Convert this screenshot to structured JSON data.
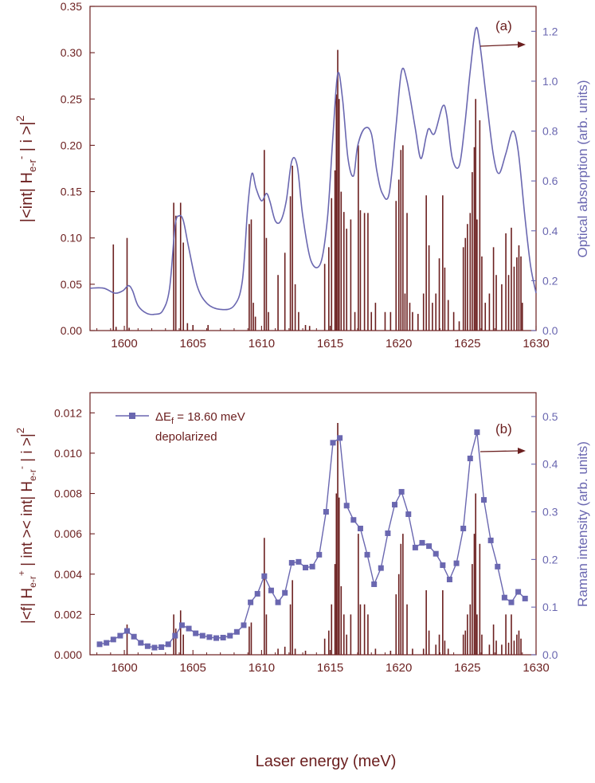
{
  "colors": {
    "dark": "#6b1f1f",
    "blue": "#6a67b0"
  },
  "xlabel": "Laser energy (meV)",
  "chart_data": [
    {
      "panel": "(a)",
      "type": "bar+line",
      "xlim": [
        1597.5,
        1630
      ],
      "x_ticks": [
        1600,
        1605,
        1610,
        1615,
        1620,
        1625,
        1630
      ],
      "ylabel_left": "|<int| H_e-r^- | i >|^2",
      "ylabel_right": "Optical absorption (arb. units)",
      "ylim_left": [
        0,
        0.35
      ],
      "yticks_left": [
        "0.00",
        "0.05",
        "0.10",
        "0.15",
        "0.20",
        "0.25",
        "0.30",
        "0.35"
      ],
      "ylim_right": [
        0,
        1.3
      ],
      "yticks_right": [
        "0.0",
        "0.2",
        "0.4",
        "0.6",
        "0.8",
        "1.0",
        "1.2"
      ],
      "arrow": "right",
      "bars": [
        [
          1599.2,
          0.093
        ],
        [
          1599.4,
          0.004
        ],
        [
          1600.2,
          0.1
        ],
        [
          1600.35,
          0.003
        ],
        [
          1603.6,
          0.138
        ],
        [
          1603.75,
          0.124
        ],
        [
          1604.1,
          0.138
        ],
        [
          1604.3,
          0.095
        ],
        [
          1604.6,
          0.008
        ],
        [
          1605,
          0.006
        ],
        [
          1606.1,
          0.006
        ],
        [
          1609.1,
          0.115
        ],
        [
          1609.25,
          0.12
        ],
        [
          1609.4,
          0.03
        ],
        [
          1609.55,
          0.015
        ],
        [
          1610.2,
          0.195
        ],
        [
          1610.35,
          0.1
        ],
        [
          1610.5,
          0.02
        ],
        [
          1611.2,
          0.06
        ],
        [
          1611.7,
          0.084
        ],
        [
          1612.1,
          0.145
        ],
        [
          1612.25,
          0.178
        ],
        [
          1612.45,
          0.05
        ],
        [
          1612.7,
          0.02
        ],
        [
          1613.2,
          0.006
        ],
        [
          1613.5,
          0.005
        ],
        [
          1614.6,
          0.072
        ],
        [
          1614.9,
          0.09
        ],
        [
          1615.1,
          0.143
        ],
        [
          1615.35,
          0.173
        ],
        [
          1615.45,
          0.255
        ],
        [
          1615.55,
          0.303
        ],
        [
          1615.65,
          0.25
        ],
        [
          1615.8,
          0.15
        ],
        [
          1616.0,
          0.128
        ],
        [
          1616.2,
          0.11
        ],
        [
          1616.5,
          0.12
        ],
        [
          1616.8,
          0.02
        ],
        [
          1617.05,
          0.2
        ],
        [
          1617.2,
          0.13
        ],
        [
          1617.5,
          0.127
        ],
        [
          1617.75,
          0.127
        ],
        [
          1618.0,
          0.02
        ],
        [
          1618.3,
          0.03
        ],
        [
          1619.0,
          0.02
        ],
        [
          1619.4,
          0.02
        ],
        [
          1619.8,
          0.14
        ],
        [
          1620.0,
          0.163
        ],
        [
          1620.15,
          0.195
        ],
        [
          1620.3,
          0.2
        ],
        [
          1620.45,
          0.04
        ],
        [
          1620.6,
          0.127
        ],
        [
          1620.8,
          0.03
        ],
        [
          1621.0,
          0.02
        ],
        [
          1621.4,
          0.018
        ],
        [
          1621.8,
          0.04
        ],
        [
          1622.0,
          0.146
        ],
        [
          1622.2,
          0.092
        ],
        [
          1622.45,
          0.03
        ],
        [
          1622.7,
          0.04
        ],
        [
          1622.95,
          0.078
        ],
        [
          1623.2,
          0.146
        ],
        [
          1623.35,
          0.068
        ],
        [
          1623.6,
          0.033
        ],
        [
          1624.0,
          0.02
        ],
        [
          1624.4,
          0.01
        ],
        [
          1624.7,
          0.09
        ],
        [
          1624.85,
          0.1
        ],
        [
          1625.0,
          0.115
        ],
        [
          1625.2,
          0.127
        ],
        [
          1625.35,
          0.171
        ],
        [
          1625.5,
          0.198
        ],
        [
          1625.6,
          0.25
        ],
        [
          1625.7,
          0.12
        ],
        [
          1625.9,
          0.227
        ],
        [
          1626.05,
          0.08
        ],
        [
          1626.3,
          0.03
        ],
        [
          1626.6,
          0.04
        ],
        [
          1626.9,
          0.09
        ],
        [
          1627.1,
          0.06
        ],
        [
          1627.5,
          0.05
        ],
        [
          1627.8,
          0.105
        ],
        [
          1628.0,
          0.06
        ],
        [
          1628.2,
          0.111
        ],
        [
          1628.4,
          0.069
        ],
        [
          1628.6,
          0.079
        ],
        [
          1628.75,
          0.092
        ],
        [
          1628.9,
          0.08
        ],
        [
          1629.0,
          0.03
        ]
      ],
      "curve": [
        [
          1597.5,
          0.17
        ],
        [
          1598.5,
          0.17
        ],
        [
          1599.3,
          0.15
        ],
        [
          1599.9,
          0.16
        ],
        [
          1600.3,
          0.18
        ],
        [
          1600.6,
          0.16
        ],
        [
          1601.0,
          0.1
        ],
        [
          1601.6,
          0.07
        ],
        [
          1602.2,
          0.065
        ],
        [
          1602.8,
          0.08
        ],
        [
          1603.3,
          0.17
        ],
        [
          1603.7,
          0.42
        ],
        [
          1604.0,
          0.46
        ],
        [
          1604.3,
          0.44
        ],
        [
          1604.7,
          0.33
        ],
        [
          1605.3,
          0.18
        ],
        [
          1606.0,
          0.11
        ],
        [
          1607.0,
          0.085
        ],
        [
          1608.0,
          0.1
        ],
        [
          1608.6,
          0.2
        ],
        [
          1609.0,
          0.5
        ],
        [
          1609.3,
          0.63
        ],
        [
          1609.6,
          0.57
        ],
        [
          1610.0,
          0.52
        ],
        [
          1610.35,
          0.55
        ],
        [
          1610.6,
          0.52
        ],
        [
          1611.0,
          0.44
        ],
        [
          1611.4,
          0.44
        ],
        [
          1611.8,
          0.52
        ],
        [
          1612.2,
          0.68
        ],
        [
          1612.6,
          0.66
        ],
        [
          1613.0,
          0.46
        ],
        [
          1613.6,
          0.28
        ],
        [
          1614.3,
          0.27
        ],
        [
          1614.8,
          0.45
        ],
        [
          1615.2,
          0.78
        ],
        [
          1615.55,
          1.03
        ],
        [
          1615.9,
          0.93
        ],
        [
          1616.3,
          0.69
        ],
        [
          1616.7,
          0.62
        ],
        [
          1617.0,
          0.74
        ],
        [
          1617.5,
          0.81
        ],
        [
          1618.0,
          0.79
        ],
        [
          1618.4,
          0.64
        ],
        [
          1618.8,
          0.55
        ],
        [
          1619.3,
          0.55
        ],
        [
          1619.8,
          0.82
        ],
        [
          1620.2,
          1.04
        ],
        [
          1620.6,
          1.0
        ],
        [
          1621.2,
          0.81
        ],
        [
          1621.6,
          0.69
        ],
        [
          1622.0,
          0.78
        ],
        [
          1622.2,
          0.81
        ],
        [
          1622.6,
          0.79
        ],
        [
          1623.2,
          0.9
        ],
        [
          1623.5,
          0.86
        ],
        [
          1623.9,
          0.69
        ],
        [
          1624.4,
          0.66
        ],
        [
          1624.8,
          0.82
        ],
        [
          1625.2,
          1.04
        ],
        [
          1625.6,
          1.21
        ],
        [
          1625.9,
          1.15
        ],
        [
          1626.4,
          0.92
        ],
        [
          1626.9,
          0.7
        ],
        [
          1627.3,
          0.63
        ],
        [
          1627.8,
          0.71
        ],
        [
          1628.3,
          0.8
        ],
        [
          1628.7,
          0.72
        ],
        [
          1629.2,
          0.45
        ],
        [
          1629.6,
          0.26
        ],
        [
          1630,
          0.15
        ]
      ]
    },
    {
      "panel": "(b)",
      "type": "bar+line",
      "xlim": [
        1597.5,
        1630
      ],
      "x_ticks": [
        1600,
        1605,
        1610,
        1615,
        1620,
        1625,
        1630
      ],
      "ylabel_left": "|<f| H_e-r^+ | int >< int| H_e-r^- | i >|^2",
      "ylabel_right": "Raman intensity (arb. units)",
      "ylim_left": [
        0,
        0.013
      ],
      "yticks_left": [
        "0.000",
        "0.002",
        "0.004",
        "0.006",
        "0.008",
        "0.010",
        "0.012"
      ],
      "ylim_right": [
        0,
        0.55
      ],
      "yticks_right": [
        "0.0",
        "0.1",
        "0.2",
        "0.3",
        "0.4",
        "0.5"
      ],
      "arrow": "right",
      "legend": {
        "series": "ΔE",
        "series_sub": "f",
        "series_rest": " = 18.60 meV",
        "note": "depolarized"
      },
      "bars": [
        [
          1600.2,
          0.0015
        ],
        [
          1603.6,
          0.002
        ],
        [
          1603.75,
          0.0013
        ],
        [
          1604.1,
          0.0022
        ],
        [
          1604.3,
          0.001
        ],
        [
          1609.1,
          0.0014
        ],
        [
          1609.25,
          0.0016
        ],
        [
          1610.2,
          0.0058
        ],
        [
          1610.35,
          0.002
        ],
        [
          1611.2,
          0.0003
        ],
        [
          1611.7,
          0.0004
        ],
        [
          1612.1,
          0.0025
        ],
        [
          1612.25,
          0.0037
        ],
        [
          1612.45,
          0.0003
        ],
        [
          1613.2,
          0.0002
        ],
        [
          1614.6,
          0.0008
        ],
        [
          1614.9,
          0.0012
        ],
        [
          1615.1,
          0.0025
        ],
        [
          1615.35,
          0.0045
        ],
        [
          1615.45,
          0.008
        ],
        [
          1615.55,
          0.0115
        ],
        [
          1615.65,
          0.0078
        ],
        [
          1615.8,
          0.0034
        ],
        [
          1616.0,
          0.002
        ],
        [
          1616.2,
          0.001
        ],
        [
          1616.5,
          0.002
        ],
        [
          1617.05,
          0.006
        ],
        [
          1617.2,
          0.0025
        ],
        [
          1617.5,
          0.0025
        ],
        [
          1617.75,
          0.002
        ],
        [
          1618.3,
          0.0003
        ],
        [
          1619.4,
          0.0002
        ],
        [
          1619.8,
          0.003
        ],
        [
          1620.0,
          0.004
        ],
        [
          1620.15,
          0.0055
        ],
        [
          1620.3,
          0.006
        ],
        [
          1620.6,
          0.0025
        ],
        [
          1621.0,
          0.0003
        ],
        [
          1621.8,
          0.0003
        ],
        [
          1622.0,
          0.0032
        ],
        [
          1622.2,
          0.0012
        ],
        [
          1622.7,
          0.0005
        ],
        [
          1622.95,
          0.001
        ],
        [
          1623.2,
          0.0032
        ],
        [
          1623.35,
          0.0007
        ],
        [
          1623.6,
          0.0003
        ],
        [
          1624.7,
          0.001
        ],
        [
          1624.85,
          0.0012
        ],
        [
          1625.0,
          0.002
        ],
        [
          1625.2,
          0.0025
        ],
        [
          1625.35,
          0.0045
        ],
        [
          1625.5,
          0.006
        ],
        [
          1625.6,
          0.008
        ],
        [
          1625.7,
          0.002
        ],
        [
          1625.9,
          0.0055
        ],
        [
          1626.05,
          0.001
        ],
        [
          1626.6,
          0.0005
        ],
        [
          1626.9,
          0.0015
        ],
        [
          1627.1,
          0.0007
        ],
        [
          1627.5,
          0.0005
        ],
        [
          1627.8,
          0.002
        ],
        [
          1628.0,
          0.0006
        ],
        [
          1628.2,
          0.002
        ],
        [
          1628.4,
          0.0007
        ],
        [
          1628.6,
          0.001
        ],
        [
          1628.75,
          0.0012
        ],
        [
          1628.9,
          0.0008
        ]
      ],
      "series": [
        [
          1598.2,
          0.022
        ],
        [
          1598.7,
          0.025
        ],
        [
          1599.2,
          0.032
        ],
        [
          1599.7,
          0.04
        ],
        [
          1600.2,
          0.05
        ],
        [
          1600.7,
          0.038
        ],
        [
          1601.2,
          0.025
        ],
        [
          1601.7,
          0.018
        ],
        [
          1602.2,
          0.015
        ],
        [
          1602.7,
          0.016
        ],
        [
          1603.2,
          0.022
        ],
        [
          1603.7,
          0.04
        ],
        [
          1604.2,
          0.062
        ],
        [
          1604.7,
          0.055
        ],
        [
          1605.2,
          0.045
        ],
        [
          1605.7,
          0.04
        ],
        [
          1606.2,
          0.037
        ],
        [
          1606.7,
          0.035
        ],
        [
          1607.2,
          0.036
        ],
        [
          1607.7,
          0.04
        ],
        [
          1608.2,
          0.048
        ],
        [
          1608.7,
          0.062
        ],
        [
          1609.2,
          0.11
        ],
        [
          1609.7,
          0.128
        ],
        [
          1610.2,
          0.165
        ],
        [
          1610.7,
          0.135
        ],
        [
          1611.2,
          0.11
        ],
        [
          1611.7,
          0.13
        ],
        [
          1612.2,
          0.193
        ],
        [
          1612.7,
          0.195
        ],
        [
          1613.2,
          0.183
        ],
        [
          1613.7,
          0.185
        ],
        [
          1614.2,
          0.21
        ],
        [
          1614.7,
          0.3
        ],
        [
          1615.2,
          0.445
        ],
        [
          1615.7,
          0.455
        ],
        [
          1616.2,
          0.313
        ],
        [
          1616.7,
          0.283
        ],
        [
          1617.2,
          0.265
        ],
        [
          1617.7,
          0.21
        ],
        [
          1618.2,
          0.148
        ],
        [
          1618.7,
          0.182
        ],
        [
          1619.2,
          0.255
        ],
        [
          1619.7,
          0.315
        ],
        [
          1620.2,
          0.342
        ],
        [
          1620.7,
          0.295
        ],
        [
          1621.2,
          0.225
        ],
        [
          1621.7,
          0.235
        ],
        [
          1622.2,
          0.228
        ],
        [
          1622.7,
          0.212
        ],
        [
          1623.2,
          0.188
        ],
        [
          1623.7,
          0.158
        ],
        [
          1624.2,
          0.192
        ],
        [
          1624.7,
          0.265
        ],
        [
          1625.2,
          0.412
        ],
        [
          1625.7,
          0.467
        ],
        [
          1626.2,
          0.325
        ],
        [
          1626.7,
          0.24
        ],
        [
          1627.2,
          0.185
        ],
        [
          1627.7,
          0.12
        ],
        [
          1628.2,
          0.11
        ],
        [
          1628.7,
          0.132
        ],
        [
          1629.2,
          0.118
        ]
      ]
    }
  ]
}
